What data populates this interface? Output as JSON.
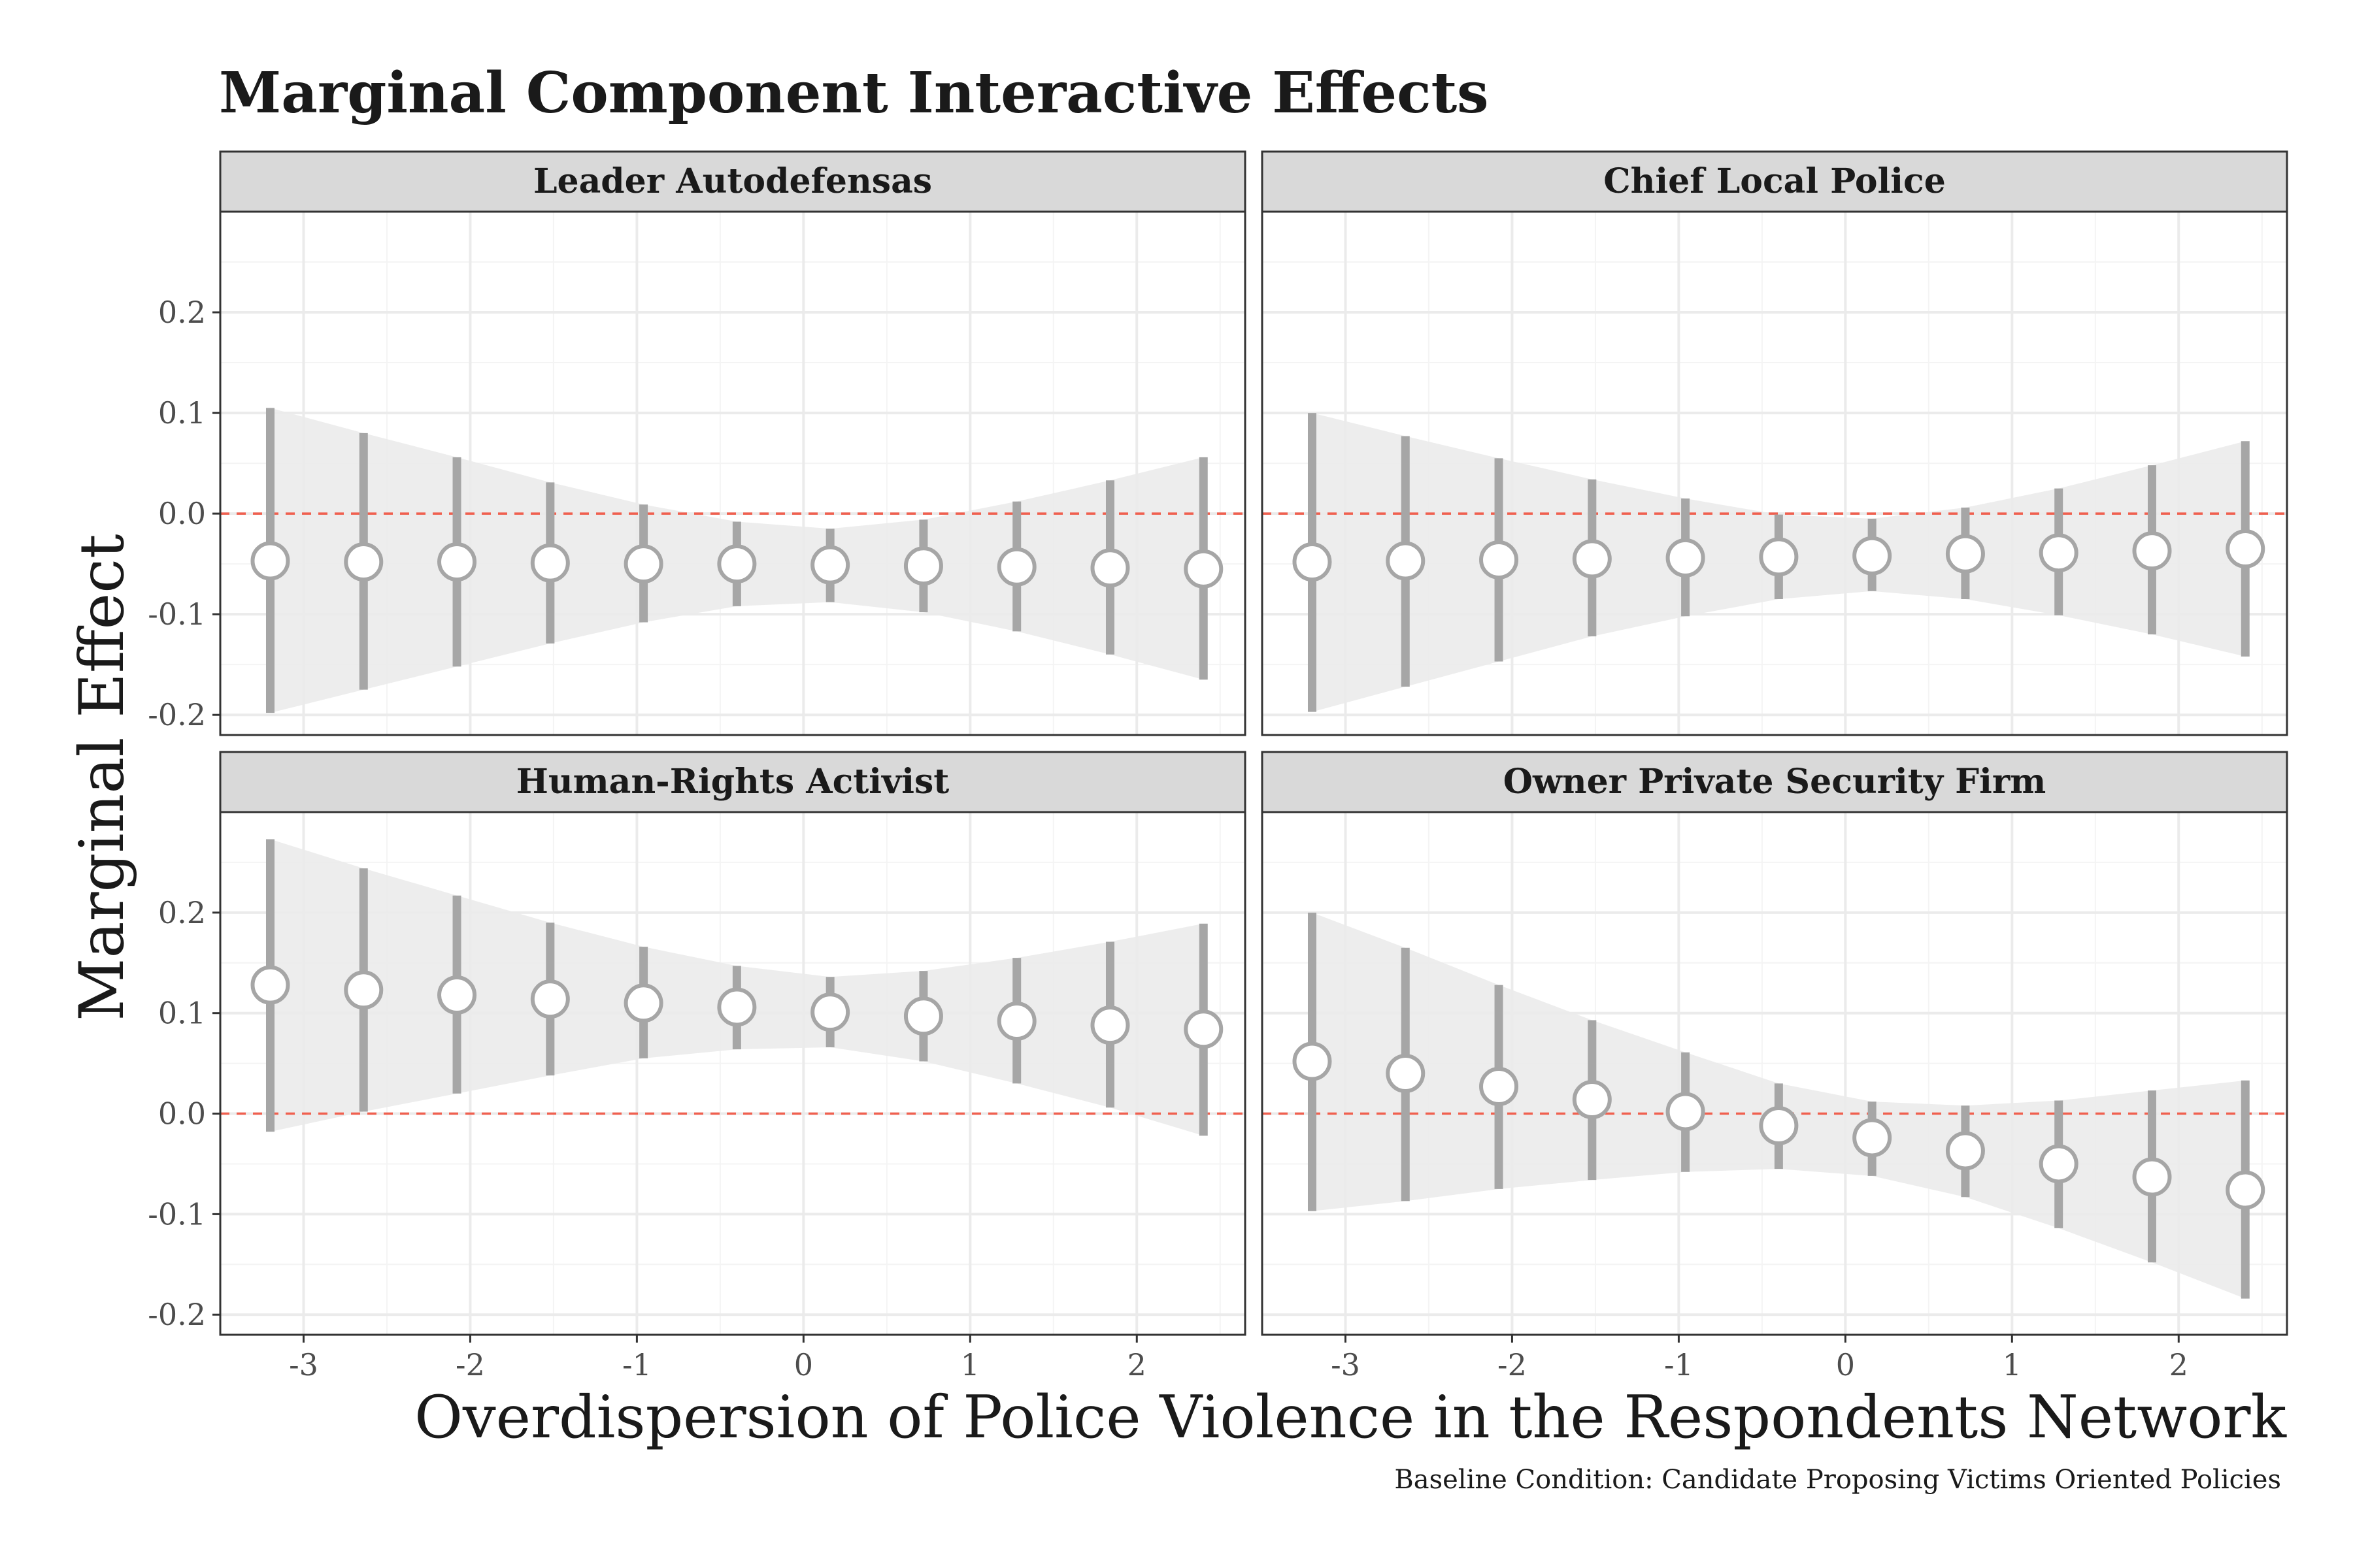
{
  "title": "Marginal Component Interactive Effects",
  "ylabel": "Marginal Effect",
  "xlabel": "Overdispersion of Police Violence in the Respondents Network",
  "caption": "Baseline Condition: Candidate Proposing Victims Oriented Policies",
  "colors": {
    "ribbon": "#ebebeb",
    "errorbar": "#a6a6a6",
    "point_stroke": "#a6a6a6",
    "point_fill": "#ffffff",
    "reference_line": "#f0604f",
    "strip_fill": "#d9d9d9",
    "grid_major": "#ebebeb",
    "grid_minor": "#f4f4f4"
  },
  "chart_data": [
    {
      "type": "scatter",
      "facet": "Leader Autodefensas",
      "x": [
        -3.2,
        -2.64,
        -2.08,
        -1.52,
        -0.96,
        -0.4,
        0.16,
        0.72,
        1.28,
        1.84,
        2.4
      ],
      "y": [
        -0.047,
        -0.048,
        -0.048,
        -0.049,
        -0.05,
        -0.05,
        -0.051,
        -0.052,
        -0.053,
        -0.054,
        -0.055
      ],
      "ci_low": [
        -0.198,
        -0.175,
        -0.152,
        -0.129,
        -0.108,
        -0.092,
        -0.088,
        -0.098,
        -0.117,
        -0.14,
        -0.165
      ],
      "ci_high": [
        0.105,
        0.08,
        0.056,
        0.031,
        0.009,
        -0.008,
        -0.015,
        -0.006,
        0.012,
        0.033,
        0.056
      ],
      "xlim": [
        -3.5,
        2.65
      ],
      "ylim": [
        -0.22,
        0.3
      ],
      "yticks": [
        -0.2,
        -0.1,
        0.0,
        0.1,
        0.2
      ],
      "xticks": [
        -3,
        -2,
        -1,
        0,
        1,
        2
      ],
      "reference_y": 0
    },
    {
      "type": "scatter",
      "facet": "Chief Local Police",
      "x": [
        -3.2,
        -2.64,
        -2.08,
        -1.52,
        -0.96,
        -0.4,
        0.16,
        0.72,
        1.28,
        1.84,
        2.4
      ],
      "y": [
        -0.048,
        -0.047,
        -0.046,
        -0.045,
        -0.044,
        -0.043,
        -0.042,
        -0.04,
        -0.039,
        -0.037,
        -0.035
      ],
      "ci_low": [
        -0.197,
        -0.172,
        -0.147,
        -0.122,
        -0.102,
        -0.085,
        -0.077,
        -0.085,
        -0.101,
        -0.12,
        -0.142
      ],
      "ci_high": [
        0.1,
        0.077,
        0.055,
        0.034,
        0.015,
        -0.001,
        -0.005,
        0.006,
        0.025,
        0.048,
        0.072
      ],
      "xlim": [
        -3.5,
        2.65
      ],
      "ylim": [
        -0.22,
        0.3
      ],
      "yticks": [
        -0.2,
        -0.1,
        0.0,
        0.1,
        0.2
      ],
      "xticks": [
        -3,
        -2,
        -1,
        0,
        1,
        2
      ],
      "reference_y": 0
    },
    {
      "type": "scatter",
      "facet": "Human-Rights Activist",
      "x": [
        -3.2,
        -2.64,
        -2.08,
        -1.52,
        -0.96,
        -0.4,
        0.16,
        0.72,
        1.28,
        1.84,
        2.4
      ],
      "y": [
        0.128,
        0.123,
        0.118,
        0.114,
        0.11,
        0.106,
        0.101,
        0.097,
        0.092,
        0.088,
        0.084
      ],
      "ci_low": [
        -0.018,
        0.002,
        0.02,
        0.038,
        0.055,
        0.064,
        0.066,
        0.052,
        0.03,
        0.006,
        -0.022
      ],
      "ci_high": [
        0.273,
        0.244,
        0.217,
        0.19,
        0.166,
        0.147,
        0.136,
        0.142,
        0.155,
        0.171,
        0.189
      ],
      "xlim": [
        -3.5,
        2.65
      ],
      "ylim": [
        -0.22,
        0.3
      ],
      "yticks": [
        -0.2,
        -0.1,
        0.0,
        0.1,
        0.2
      ],
      "xticks": [
        -3,
        -2,
        -1,
        0,
        1,
        2
      ],
      "reference_y": 0
    },
    {
      "type": "scatter",
      "facet": "Owner Private Security Firm",
      "x": [
        -3.2,
        -2.64,
        -2.08,
        -1.52,
        -0.96,
        -0.4,
        0.16,
        0.72,
        1.28,
        1.84,
        2.4
      ],
      "y": [
        0.052,
        0.04,
        0.027,
        0.014,
        0.002,
        -0.012,
        -0.024,
        -0.037,
        -0.05,
        -0.063,
        -0.076
      ],
      "ci_low": [
        -0.097,
        -0.087,
        -0.075,
        -0.066,
        -0.058,
        -0.055,
        -0.062,
        -0.083,
        -0.114,
        -0.148,
        -0.184
      ],
      "ci_high": [
        0.2,
        0.165,
        0.128,
        0.093,
        0.061,
        0.03,
        0.012,
        0.008,
        0.013,
        0.023,
        0.033
      ],
      "xlim": [
        -3.5,
        2.65
      ],
      "ylim": [
        -0.22,
        0.3
      ],
      "yticks": [
        -0.2,
        -0.1,
        0.0,
        0.1,
        0.2
      ],
      "xticks": [
        -3,
        -2,
        -1,
        0,
        1,
        2
      ],
      "reference_y": 0
    }
  ]
}
